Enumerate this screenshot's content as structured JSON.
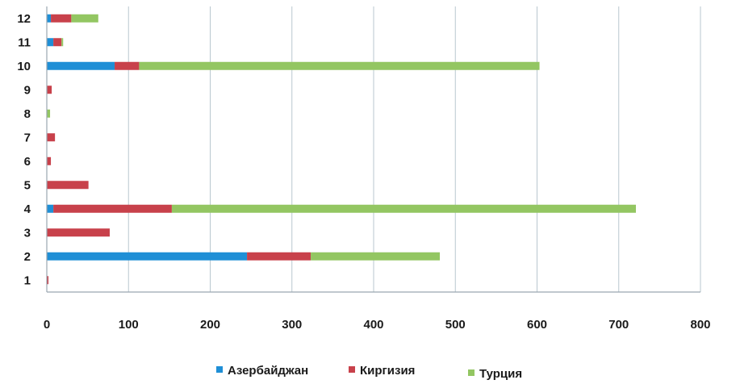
{
  "chart_data": {
    "type": "bar",
    "orientation": "horizontal",
    "stacked": true,
    "categories": [
      "1",
      "2",
      "3",
      "4",
      "5",
      "6",
      "7",
      "8",
      "9",
      "10",
      "11",
      "12"
    ],
    "series": [
      {
        "name": "Азербайджан",
        "color": "#1f8fd6",
        "values": [
          0,
          245,
          0,
          8,
          0,
          0,
          0,
          0,
          0,
          83,
          8,
          5
        ]
      },
      {
        "name": "Киргизия",
        "color": "#c8414b",
        "values": [
          2,
          78,
          77,
          145,
          51,
          5,
          10,
          0,
          6,
          30,
          10,
          25
        ]
      },
      {
        "name": "Турция",
        "color": "#93c662",
        "values": [
          0,
          158,
          0,
          568,
          0,
          0,
          0,
          4,
          0,
          490,
          2,
          33
        ]
      }
    ],
    "xticks": [
      "0",
      "100",
      "200",
      "300",
      "400",
      "500",
      "600",
      "700",
      "800"
    ],
    "xlim": [
      0,
      800
    ],
    "grid": true,
    "legend_position": "bottom"
  }
}
